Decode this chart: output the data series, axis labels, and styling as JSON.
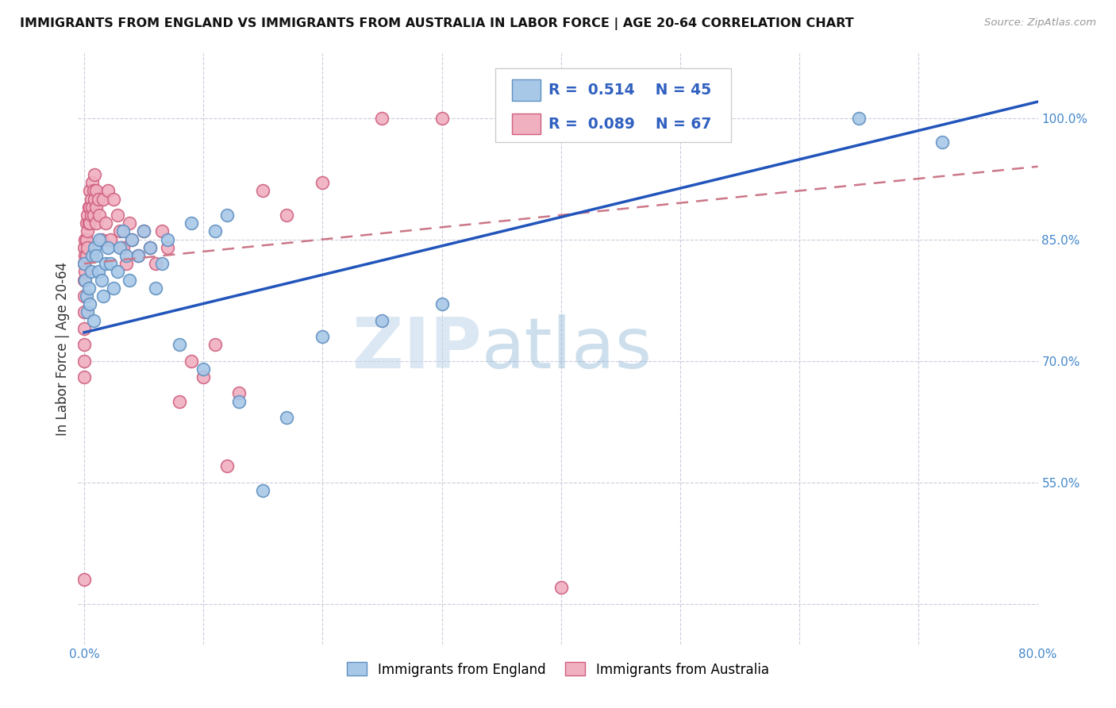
{
  "title": "IMMIGRANTS FROM ENGLAND VS IMMIGRANTS FROM AUSTRALIA IN LABOR FORCE | AGE 20-64 CORRELATION CHART",
  "source": "Source: ZipAtlas.com",
  "ylabel": "In Labor Force | Age 20-64",
  "england_color": "#a8c8e8",
  "england_edge": "#6090c0",
  "australia_color": "#f0b0c0",
  "australia_edge": "#d06080",
  "england_R": 0.514,
  "england_N": 45,
  "australia_R": 0.089,
  "australia_N": 67,
  "legend_text_color": "#3060c0",
  "watermark_zip": "ZIP",
  "watermark_atlas": "atlas",
  "england_x": [
    0.0,
    0.001,
    0.002,
    0.003,
    0.004,
    0.005,
    0.006,
    0.007,
    0.008,
    0.009,
    0.01,
    0.012,
    0.013,
    0.015,
    0.016,
    0.018,
    0.02,
    0.022,
    0.025,
    0.028,
    0.03,
    0.033,
    0.035,
    0.038,
    0.04,
    0.045,
    0.05,
    0.055,
    0.06,
    0.065,
    0.07,
    0.08,
    0.09,
    0.1,
    0.11,
    0.12,
    0.13,
    0.15,
    0.17,
    0.2,
    0.25,
    0.3,
    0.5,
    0.65,
    0.72
  ],
  "england_y": [
    0.82,
    0.8,
    0.78,
    0.76,
    0.79,
    0.77,
    0.81,
    0.83,
    0.75,
    0.84,
    0.83,
    0.81,
    0.85,
    0.8,
    0.78,
    0.82,
    0.84,
    0.82,
    0.79,
    0.81,
    0.84,
    0.86,
    0.83,
    0.8,
    0.85,
    0.83,
    0.86,
    0.84,
    0.79,
    0.82,
    0.85,
    0.72,
    0.87,
    0.69,
    0.86,
    0.88,
    0.65,
    0.54,
    0.63,
    0.73,
    0.75,
    0.77,
    1.0,
    1.0,
    0.97
  ],
  "australia_x": [
    0.0,
    0.0,
    0.0,
    0.0,
    0.0,
    0.0,
    0.0,
    0.0,
    0.0,
    0.0,
    0.001,
    0.001,
    0.001,
    0.002,
    0.002,
    0.002,
    0.003,
    0.003,
    0.003,
    0.004,
    0.004,
    0.005,
    0.005,
    0.005,
    0.006,
    0.006,
    0.007,
    0.007,
    0.008,
    0.008,
    0.009,
    0.009,
    0.01,
    0.01,
    0.01,
    0.012,
    0.013,
    0.015,
    0.016,
    0.018,
    0.02,
    0.022,
    0.025,
    0.028,
    0.03,
    0.033,
    0.035,
    0.038,
    0.04,
    0.045,
    0.05,
    0.055,
    0.06,
    0.065,
    0.07,
    0.08,
    0.09,
    0.1,
    0.11,
    0.12,
    0.13,
    0.15,
    0.17,
    0.2,
    0.25,
    0.3,
    0.4
  ],
  "australia_y": [
    0.84,
    0.82,
    0.8,
    0.78,
    0.76,
    0.74,
    0.72,
    0.7,
    0.68,
    0.43,
    0.85,
    0.83,
    0.81,
    0.87,
    0.85,
    0.83,
    0.88,
    0.86,
    0.84,
    0.89,
    0.87,
    0.91,
    0.89,
    0.87,
    0.9,
    0.88,
    0.92,
    0.89,
    0.91,
    0.88,
    0.93,
    0.9,
    0.91,
    0.89,
    0.87,
    0.9,
    0.88,
    0.85,
    0.9,
    0.87,
    0.91,
    0.85,
    0.9,
    0.88,
    0.86,
    0.84,
    0.82,
    0.87,
    0.85,
    0.83,
    0.86,
    0.84,
    0.82,
    0.86,
    0.84,
    0.65,
    0.7,
    0.68,
    0.72,
    0.57,
    0.66,
    0.91,
    0.88,
    0.92,
    1.0,
    1.0,
    0.42
  ],
  "xlim": [
    -0.005,
    0.8
  ],
  "ylim": [
    0.35,
    1.08
  ],
  "xtick_pos": [
    0.0,
    0.1,
    0.2,
    0.3,
    0.4,
    0.5,
    0.6,
    0.7,
    0.8
  ],
  "xtick_labels": [
    "0.0%",
    "",
    "",
    "",
    "",
    "",
    "",
    "",
    "80.0%"
  ],
  "ytick_pos": [
    0.4,
    0.55,
    0.7,
    0.85,
    1.0
  ],
  "ytick_labels": [
    "",
    "55.0%",
    "70.0%",
    "85.0%",
    "100.0%"
  ],
  "eng_line_x": [
    0.0,
    0.8
  ],
  "eng_line_y": [
    0.735,
    1.02
  ],
  "aus_line_x": [
    0.0,
    0.8
  ],
  "aus_line_y": [
    0.82,
    0.94
  ]
}
